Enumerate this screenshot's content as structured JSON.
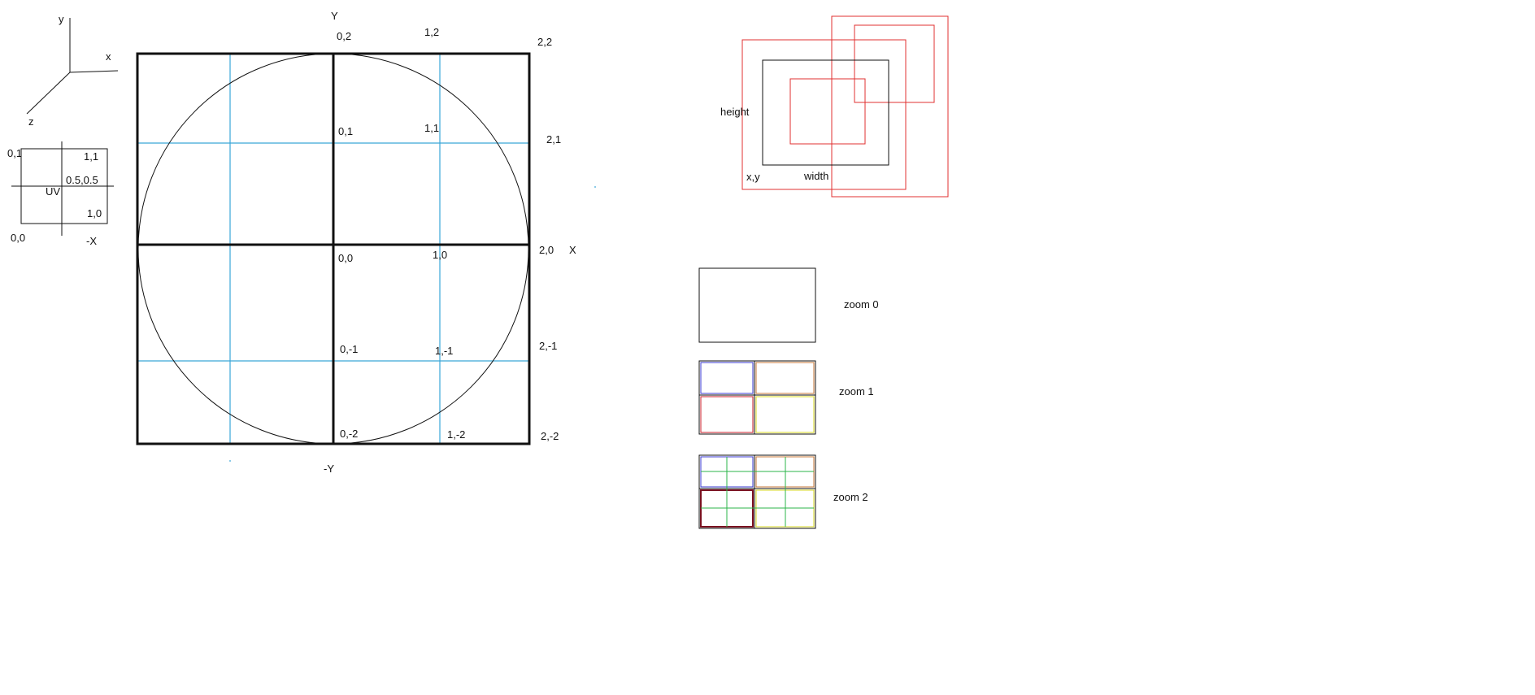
{
  "axes_gizmo": {
    "y": "y",
    "x": "x",
    "z": "z"
  },
  "uv_box": {
    "tl": "0,1",
    "tr": "1,1",
    "center": "0.5,0.5",
    "uv": "UV",
    "br": "1,0",
    "bl": "0,0",
    "neg_x": "-X"
  },
  "globe": {
    "y_axis": "Y",
    "x_axis": "X",
    "neg_y": "-Y",
    "labels": {
      "p_0_2": "0,2",
      "p_1_2": "1,2",
      "p_2_2": "2,2",
      "p_0_1": "0,1",
      "p_1_1": "1,1",
      "p_2_1": "2,1",
      "p_0_0": "0,0",
      "p_1_0": "1,0",
      "p_2_0": "2,0",
      "p_0_m1": "0,-1",
      "p_1_m1": "1,-1",
      "p_2_m1": "2,-1",
      "p_0_m2": "0,-2",
      "p_1_m2": "1,-2",
      "p_2_m2": "2,-2"
    }
  },
  "rect_diagram": {
    "height": "height",
    "xy": "x,y",
    "width": "width"
  },
  "zoom": {
    "z0": "zoom 0",
    "z1": "zoom 1",
    "z2": "zoom 2"
  },
  "colors": {
    "grid_blue": "#3aa6d8",
    "red": "#e03030",
    "tile_blue": "#3a3ad0",
    "tile_orange": "#c87a3a",
    "tile_red": "#c81e2a",
    "tile_yellow": "#d8d820",
    "tile_green": "#2bb54a",
    "tile_darkred": "#7a1020"
  }
}
